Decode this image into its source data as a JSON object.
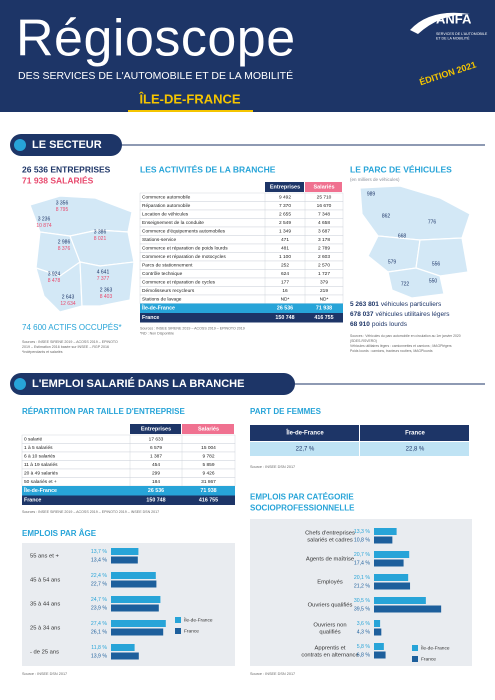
{
  "header": {
    "title": "Régioscope",
    "subtitle": "DES SERVICES DE L'AUTOMOBILE ET DE LA MOBILITÉ",
    "edition": "ÉDITION 2021",
    "region": "ÎLE-DE-FRANCE",
    "logo": "ANFA",
    "logo_tagline": "SERVICES DE L'AUTOMOBILE\nET DE LA MOBILITÉ"
  },
  "sector": {
    "title": "LE SECTEUR",
    "companies": "26 536 ENTREPRISES",
    "employees": "71 938 SALARIÉS",
    "map": [
      {
        "companies": "3 356",
        "employees": "8 795"
      },
      {
        "companies": "3 236",
        "employees": "10 874"
      },
      {
        "companies": "3 386",
        "employees": "8 021"
      },
      {
        "companies": "2 986",
        "employees": "8 376"
      },
      {
        "companies": "3 924",
        "employees": "8 478"
      },
      {
        "companies": "4 641",
        "employees": "7 377"
      },
      {
        "companies": "2 363",
        "employees": "8 403"
      },
      {
        "companies": "2 643",
        "employees": "12 634"
      }
    ],
    "active": "74 600 ACTIFS OCCUPÉS*",
    "sources": [
      "Sources : INSEE SIRENE 2019 – ACOSS 2019 – EPINOTO",
      "2019 – Estimation 2016 basée sur INSEE – RGP 2016",
      "*Indépendants et salariés"
    ]
  },
  "activities": {
    "title": "LES ACTIVITÉS DE LA BRANCHE",
    "columns": [
      "Entreprises",
      "Salariés"
    ],
    "rows": [
      [
        "Commerce automobile",
        "9 492",
        "25 710"
      ],
      [
        "Réparation automobile",
        "7 370",
        "16 670"
      ],
      [
        "Location de véhicules",
        "2 655",
        "7 348"
      ],
      [
        "Enseignement de la conduite",
        "2 549",
        "4 658"
      ],
      [
        "Commerce d'équipements automobiles",
        "1 349",
        "3 687"
      ],
      [
        "Stations-service",
        "471",
        "3 178"
      ],
      [
        "Commerce et réparation de poids lourds",
        "481",
        "2 789"
      ],
      [
        "Commerce et réparation de motocycles",
        "1 100",
        "2 603"
      ],
      [
        "Parcs de stationnement",
        "252",
        "2 570"
      ],
      [
        "Contrôle technique",
        "624",
        "1 727"
      ],
      [
        "Commerce et réparation de cycles",
        "177",
        "379"
      ],
      [
        "Démolisseurs recycleurs",
        "16",
        "219"
      ],
      [
        "Stations de lavage",
        "ND*",
        "ND*"
      ]
    ],
    "totals": [
      [
        "Île-de-France",
        "26 536",
        "71 938"
      ],
      [
        "France",
        "150 748",
        "416 755"
      ]
    ],
    "sources": [
      "Sources : INSEE SIRENE 2019 – ACOSS 2019 – EPINOTO 2019",
      "*ND : Non Disponible"
    ]
  },
  "fleet": {
    "title": "LE PARC DE VÉHICULES",
    "subtitle": "(en milliers de véhicules)",
    "map": [
      "989",
      "862",
      "776",
      "668",
      "579",
      "556",
      "722",
      "550"
    ],
    "lines": [
      {
        "value": "5 263 801",
        "label": "véhicules particuliers"
      },
      {
        "value": "678 037",
        "label": "véhicules utilitaires légers"
      },
      {
        "value": "68 910",
        "label": "poids lourds"
      }
    ],
    "sources": [
      "Sources : Véhicules du parc automobile en circulation au 1er janvier 2020",
      "(SDES-RSVERO)",
      "Véhicules utilitaires légers : camionnettes et camions ; MAGPlégers",
      "Poids lourds : camions, tracteurs routiers, MAGPlourds"
    ]
  },
  "employment": {
    "title": "L'EMPLOI SALARIÉ DANS LA BRANCHE"
  },
  "size_table": {
    "title": "RÉPARTITION PAR TAILLE D'ENTREPRISE",
    "columns": [
      "Entreprises",
      "Salariés"
    ],
    "rows": [
      [
        "0 salarié",
        "17 633",
        null
      ],
      [
        "1 à 5 salariés",
        "6 579",
        "15 004"
      ],
      [
        "6 à 10 salariés",
        "1 387",
        "9 782"
      ],
      [
        "11 à 19 salariés",
        "454",
        "5 859"
      ],
      [
        "20 à 49 salariés",
        "299",
        "9 426"
      ],
      [
        "50 salariés et +",
        "184",
        "31 867"
      ]
    ],
    "totals": [
      [
        "Île-de-France",
        "26 536",
        "71 938"
      ],
      [
        "France",
        "150 748",
        "416 755"
      ]
    ],
    "source": "Sources : INSEE SIRENE 2019 – ACOSS 2019 – EPINOTO 2019 – INSEE DSN 2017"
  },
  "women": {
    "title": "PART DE FEMMES",
    "columns": [
      "Île-de-France",
      "France"
    ],
    "values": [
      "22,7 %",
      "22,8 %"
    ],
    "source": "Source : INSEE DSN 2017"
  },
  "chart_data": [
    {
      "type": "bar",
      "orientation": "horizontal",
      "title": "EMPLOIS PAR ÂGE",
      "categories": [
        "55 ans et +",
        "45 à 54 ans",
        "35 à 44 ans",
        "25 à 34 ans",
        "- de 25 ans"
      ],
      "series": [
        {
          "name": "Île-de-France",
          "color": "#27a4d8",
          "values": [
            13.7,
            22.4,
            24.7,
            27.4,
            11.8
          ],
          "value_labels": [
            "13,7 %",
            "22,4 %",
            "24,7 %",
            "27,4 %",
            "11,8 %"
          ]
        },
        {
          "name": "France",
          "color": "#1d5f9c",
          "values": [
            13.4,
            22.7,
            23.9,
            26.1,
            13.9
          ],
          "value_labels": [
            "13,4 %",
            "22,7 %",
            "23,9 %",
            "26,1 %",
            "13,9 %"
          ]
        }
      ],
      "source": "Source : INSEE DSN 2017"
    },
    {
      "type": "bar",
      "orientation": "horizontal",
      "title": "EMPLOIS PAR CATÉGORIE\nSOCIOPROFESSIONNELLE",
      "categories": [
        "Chefs d'entreprises\nsalariés et cadres",
        "Agents de maîtrise",
        "Employés",
        "Ouvriers qualifiés",
        "Ouvriers non\nqualifiés",
        "Apprentis et\ncontrats en alternance"
      ],
      "series": [
        {
          "name": "Île-de-France",
          "color": "#27a4d8",
          "values": [
            13.3,
            20.7,
            20.1,
            30.5,
            3.6,
            5.8
          ],
          "value_labels": [
            "13,3 %",
            "20,7 %",
            "20,1 %",
            "30,5 %",
            "3,6 %",
            "5,8 %"
          ]
        },
        {
          "name": "France",
          "color": "#1d5f9c",
          "values": [
            10.8,
            17.4,
            21.2,
            39.5,
            4.3,
            6.8
          ],
          "value_labels": [
            "10,8 %",
            "17,4 %",
            "21,2 %",
            "39,5 %",
            "4,3 %",
            "6,8 %"
          ]
        }
      ],
      "source": "Source : INSEE DSN 2017"
    }
  ]
}
